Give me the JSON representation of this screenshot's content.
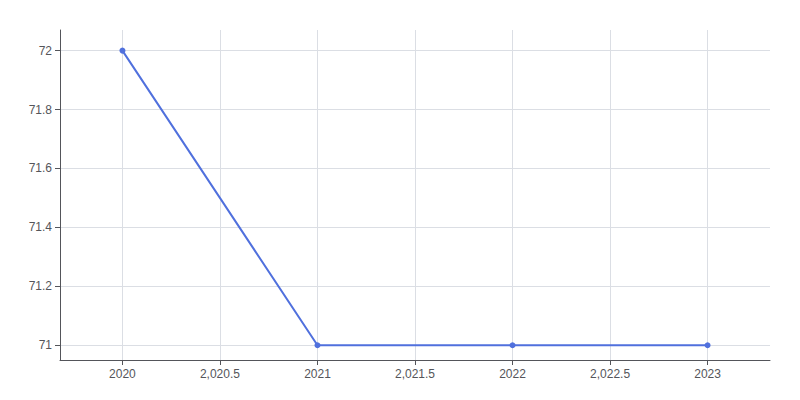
{
  "chart_data": {
    "type": "line",
    "x": [
      2020,
      2021,
      2022,
      2023
    ],
    "values": [
      72,
      71,
      71,
      71
    ],
    "xlim": [
      2019.68,
      2023.32
    ],
    "ylim": [
      70.95,
      72.07
    ],
    "xticks": [
      2020,
      {
        "value": 2020.5,
        "label": "2,020.5"
      },
      2021,
      {
        "value": 2021.5,
        "label": "2,021.5"
      },
      2022,
      {
        "value": 2022.5,
        "label": "2,022.5"
      },
      2023
    ],
    "yticks": [
      71,
      71.2,
      71.4,
      71.6,
      71.8,
      72
    ],
    "grid": true,
    "marker": "circle"
  }
}
